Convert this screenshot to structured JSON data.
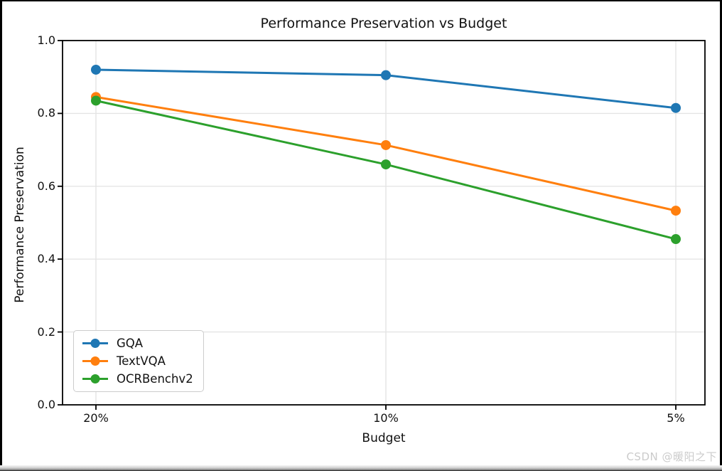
{
  "page": {
    "watermark": "CSDN @暖阳之下"
  },
  "chart_data": {
    "type": "line",
    "title": "Performance Preservation vs Budget",
    "xlabel": "Budget",
    "ylabel": "Performance Preservation",
    "categories": [
      "20%",
      "10%",
      "5%"
    ],
    "series": [
      {
        "name": "GQA",
        "color": "#1f77b4",
        "values": [
          0.92,
          0.905,
          0.815
        ]
      },
      {
        "name": "TextVQA",
        "color": "#ff7f0e",
        "values": [
          0.845,
          0.713,
          0.533
        ]
      },
      {
        "name": "OCRBenchv2",
        "color": "#2ca02c",
        "values": [
          0.835,
          0.66,
          0.455
        ]
      }
    ],
    "ylim": [
      0.0,
      1.0
    ],
    "yticks": [
      "0.0",
      "0.2",
      "0.4",
      "0.6",
      "0.8",
      "1.0"
    ],
    "grid": true,
    "grid_color": "#e4e4e4",
    "axis_color": "#000000",
    "legend_position": "lower left",
    "marker": "o"
  }
}
